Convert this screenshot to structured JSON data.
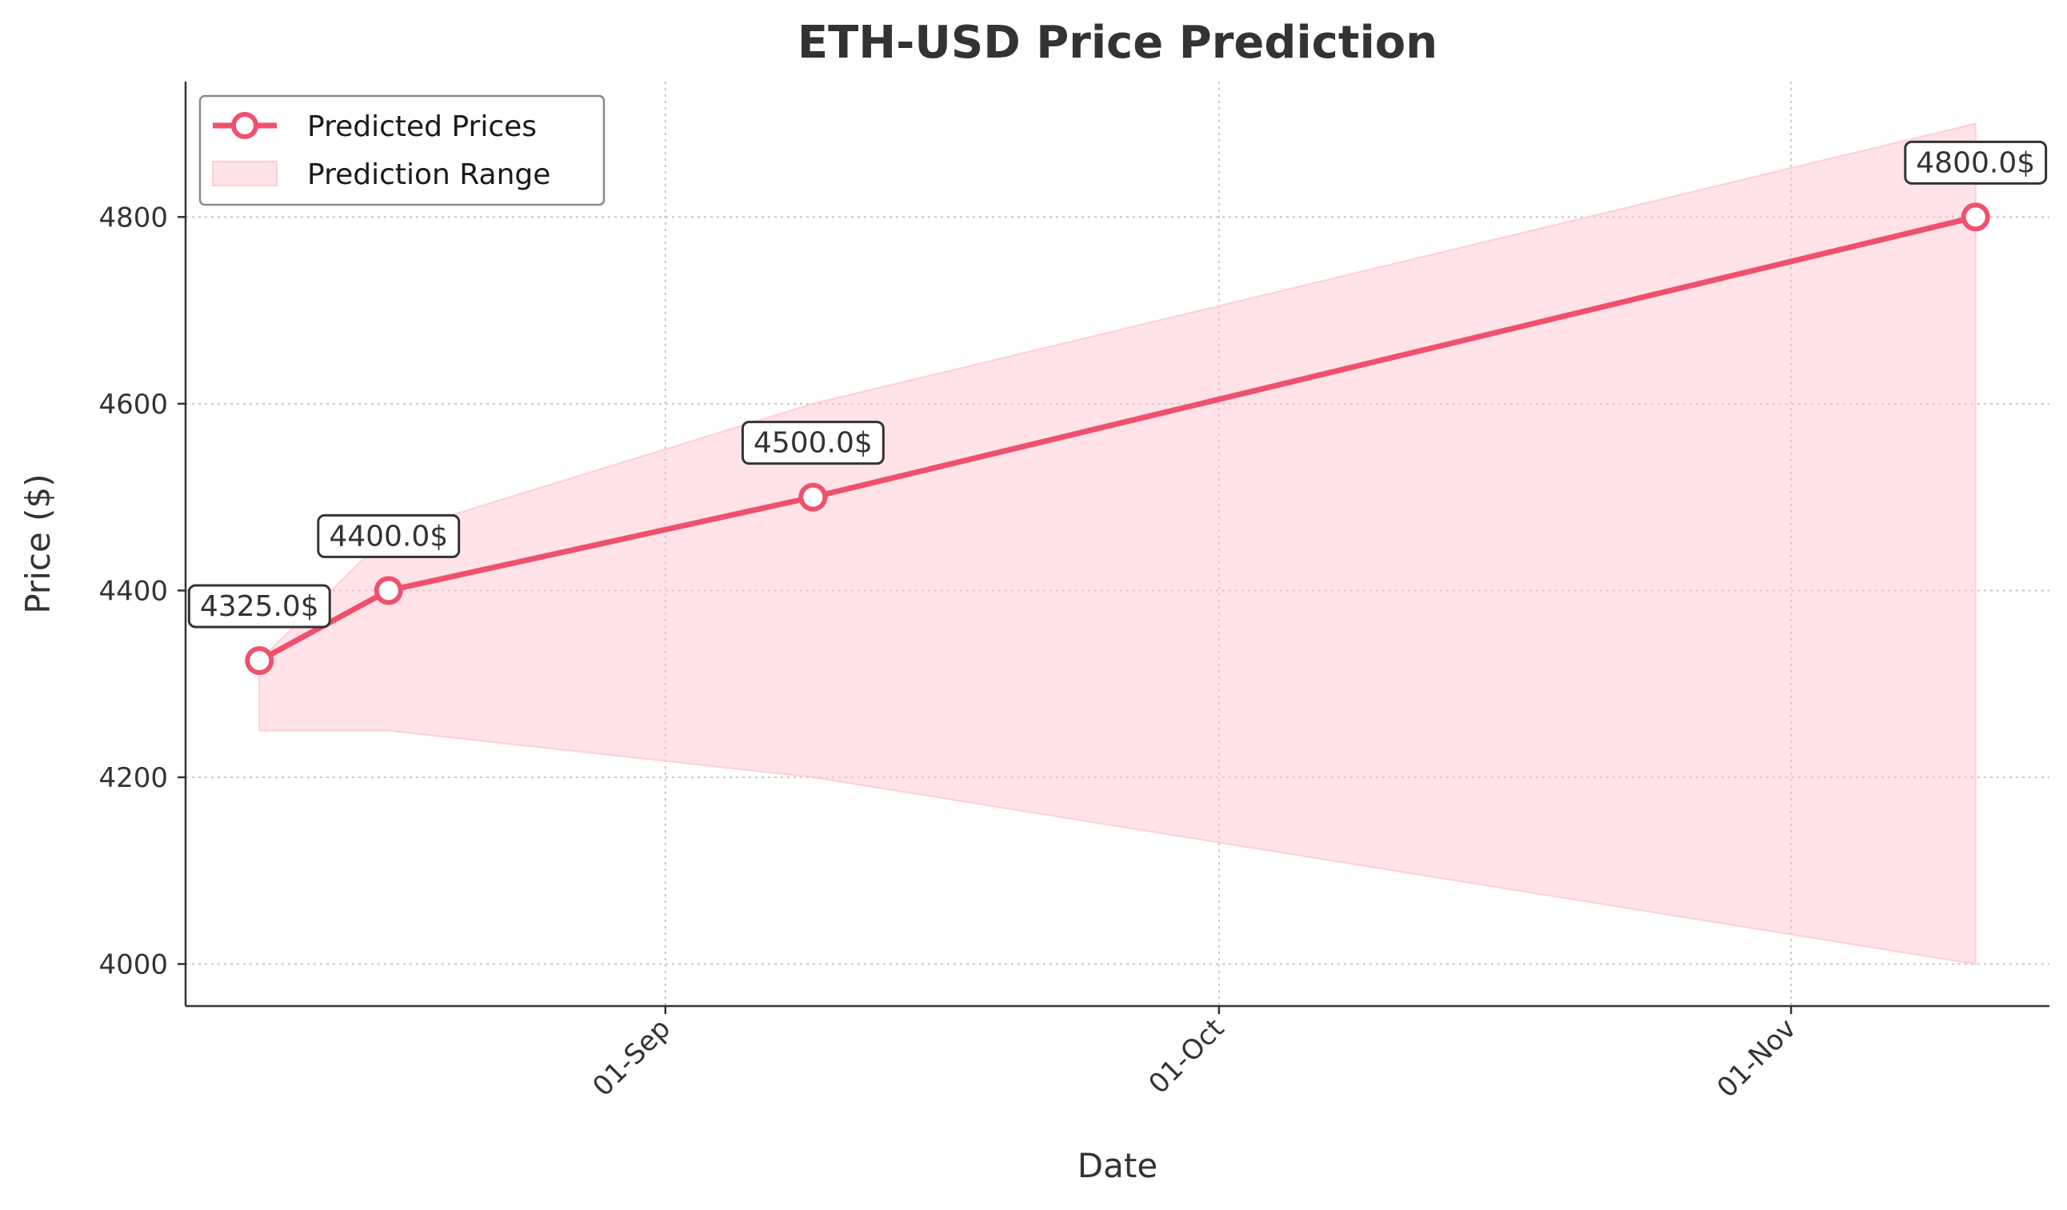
{
  "chart_data": {
    "type": "line",
    "title": "ETH-USD Price Prediction",
    "xlabel": "Date",
    "ylabel": "Price ($)",
    "x": [
      "2025-08-10",
      "2025-08-17",
      "2025-09-09",
      "2025-11-11"
    ],
    "series": [
      {
        "name": "Predicted Prices",
        "values": [
          4325.0,
          4400.0,
          4500.0,
          4800.0
        ],
        "labels": [
          "4325.0$",
          "4400.0$",
          "4500.0$",
          "4800.0$"
        ],
        "color": "#f0506e"
      }
    ],
    "range": {
      "name": "Prediction Range",
      "lower": [
        4250,
        4250,
        4200,
        4000
      ],
      "upper": [
        4325,
        4460,
        4600,
        4900
      ],
      "color": "#ffc0cb"
    },
    "xticks": [
      {
        "date": "2025-09-01",
        "label": "01-Sep"
      },
      {
        "date": "2025-10-01",
        "label": "01-Oct"
      },
      {
        "date": "2025-11-01",
        "label": "01-Nov"
      }
    ],
    "yticks": [
      4000,
      4200,
      4400,
      4600,
      4800
    ],
    "xlim": [
      "2025-08-06",
      "2025-11-15"
    ],
    "ylim": [
      3955,
      4945
    ],
    "grid": true,
    "legend_position": "top-left"
  }
}
